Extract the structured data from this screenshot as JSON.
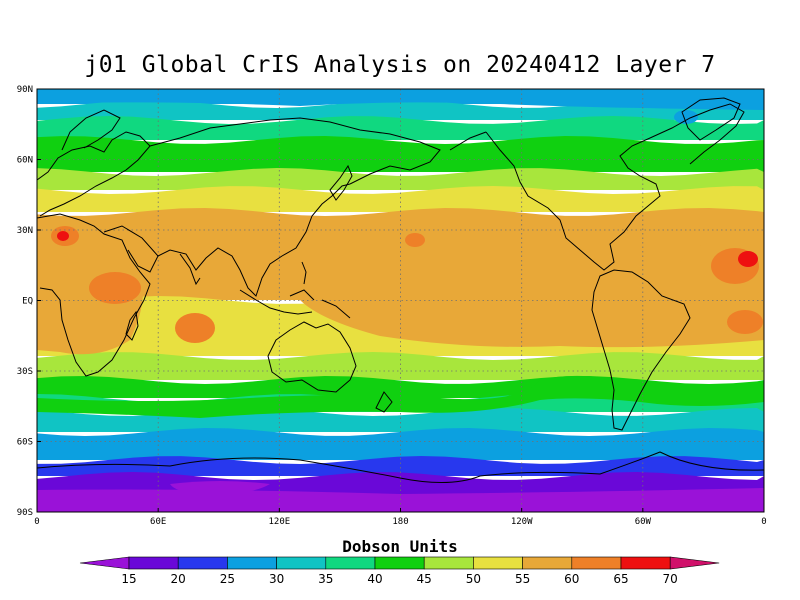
{
  "title": "j01 Global CrIS Analysis on 20240412 Layer 7",
  "units_label": "Dobson Units",
  "lat_ticks": [
    "90N",
    "60N",
    "30N",
    "EQ",
    "30S",
    "60S",
    "90S"
  ],
  "lon_ticks": [
    "0",
    "60E",
    "120E",
    "180",
    "120W",
    "60W",
    "0"
  ],
  "colorbar": {
    "levels": [
      "15",
      "20",
      "25",
      "30",
      "35",
      "40",
      "45",
      "50",
      "55",
      "60",
      "65",
      "70"
    ],
    "colors": [
      "#9a12d8",
      "#6a08d8",
      "#2838ee",
      "#0ca0e0",
      "#10c4c4",
      "#10d880",
      "#10d010",
      "#a8e63c",
      "#e8e040",
      "#e8a838",
      "#ee8028",
      "#ee1010",
      "#d0106a"
    ]
  },
  "bands": [
    {
      "color": "#0ca0e0",
      "value": "25-30"
    },
    {
      "color": "#10c4c4",
      "value": "30-35"
    },
    {
      "color": "#10d880",
      "value": "35-40"
    },
    {
      "color": "#10d010",
      "value": "40-45"
    },
    {
      "color": "#a8e63c",
      "value": "45-50"
    },
    {
      "color": "#e8e040",
      "value": "50-55"
    },
    {
      "color": "#e8a838",
      "value": "55-60"
    },
    {
      "color": "#e8e040",
      "value": "50-55"
    },
    {
      "color": "#a8e63c",
      "value": "45-50"
    },
    {
      "color": "#10d010",
      "value": "40-45"
    },
    {
      "color": "#10d880",
      "value": "35-40"
    },
    {
      "color": "#10c4c4",
      "value": "30-35"
    },
    {
      "color": "#0ca0e0",
      "value": "25-30"
    },
    {
      "color": "#2838ee",
      "value": "20-25"
    },
    {
      "color": "#6a08d8",
      "value": "15-20"
    }
  ]
}
